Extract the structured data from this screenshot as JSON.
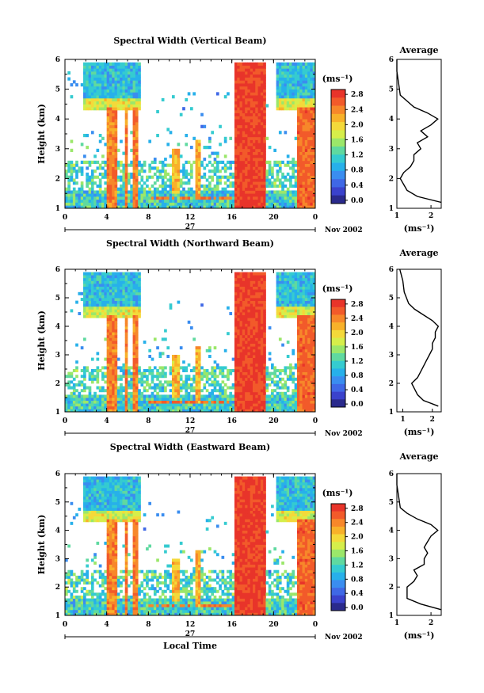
{
  "colorbar": {
    "unit": "(ms⁻¹)",
    "ticks": [
      "2.8",
      "2.4",
      "2.0",
      "1.6",
      "1.2",
      "0.8",
      "0.4",
      "0.0"
    ],
    "colors": [
      "#e8342a",
      "#f25a2a",
      "#f7872a",
      "#f8b12a",
      "#f4d93a",
      "#d6ee4a",
      "#9be76a",
      "#5fd9a0",
      "#35cbd0",
      "#27b0ea",
      "#3a8df0",
      "#3f68e6",
      "#3a42cc",
      "#2a2a8c"
    ]
  },
  "chart_data": [
    {
      "type": "heatmap",
      "title": "Spectral Width (Vertical Beam)",
      "ylabel": "Height (km)",
      "ylim": [
        1,
        6
      ],
      "yticks": [
        "1",
        "2",
        "3",
        "4",
        "5",
        "6"
      ],
      "xticks": [
        "0",
        "4",
        "8",
        "12",
        "16",
        "20",
        "0"
      ],
      "day_label": "27",
      "date_label": "Nov 2002",
      "average": {
        "title": "Average",
        "xlabel": "(ms⁻¹)",
        "xticks": [
          "1",
          "2"
        ],
        "xlim": [
          1,
          2.3
        ],
        "yticks": [
          "1",
          "2",
          "3",
          "4",
          "5",
          "6"
        ],
        "profile": [
          [
            2.3,
            1.2
          ],
          [
            1.6,
            1.4
          ],
          [
            1.3,
            1.6
          ],
          [
            1.2,
            1.8
          ],
          [
            1.1,
            2.0
          ],
          [
            1.2,
            2.2
          ],
          [
            1.4,
            2.4
          ],
          [
            1.5,
            2.6
          ],
          [
            1.5,
            2.8
          ],
          [
            1.7,
            3.0
          ],
          [
            1.6,
            3.2
          ],
          [
            1.9,
            3.4
          ],
          [
            1.7,
            3.6
          ],
          [
            2.0,
            3.8
          ],
          [
            2.2,
            4.0
          ],
          [
            1.9,
            4.2
          ],
          [
            1.5,
            4.4
          ],
          [
            1.3,
            4.6
          ],
          [
            1.1,
            4.8
          ],
          [
            1.05,
            5.2
          ],
          [
            1.0,
            5.6
          ],
          [
            1.0,
            6.0
          ]
        ]
      }
    },
    {
      "type": "heatmap",
      "title": "Spectral Width (Northward Beam)",
      "ylabel": "Height (km)",
      "ylim": [
        1,
        6
      ],
      "yticks": [
        "1",
        "2",
        "3",
        "4",
        "5",
        "6"
      ],
      "xticks": [
        "0",
        "4",
        "8",
        "12",
        "16",
        "20",
        "0"
      ],
      "day_label": "27",
      "date_label": "Nov 2002",
      "average": {
        "title": "Average",
        "xlabel": "(ms⁻¹)",
        "xticks": [
          "1",
          "2"
        ],
        "xlim": [
          0.8,
          2.3
        ],
        "yticks": [
          "1",
          "2",
          "3",
          "4",
          "5",
          "6"
        ],
        "profile": [
          [
            2.2,
            1.2
          ],
          [
            1.7,
            1.4
          ],
          [
            1.5,
            1.6
          ],
          [
            1.4,
            1.8
          ],
          [
            1.3,
            2.0
          ],
          [
            1.5,
            2.2
          ],
          [
            1.6,
            2.4
          ],
          [
            1.7,
            2.6
          ],
          [
            1.8,
            2.8
          ],
          [
            1.9,
            3.0
          ],
          [
            2.0,
            3.2
          ],
          [
            2.0,
            3.4
          ],
          [
            2.1,
            3.6
          ],
          [
            2.1,
            3.8
          ],
          [
            2.2,
            4.0
          ],
          [
            2.0,
            4.2
          ],
          [
            1.7,
            4.4
          ],
          [
            1.4,
            4.6
          ],
          [
            1.2,
            4.8
          ],
          [
            1.05,
            5.2
          ],
          [
            1.0,
            5.6
          ],
          [
            0.9,
            6.0
          ]
        ]
      }
    },
    {
      "type": "heatmap",
      "title": "Spectral Width (Eastward Beam)",
      "ylabel": "Height (km)",
      "xlabel": "Local Time",
      "ylim": [
        1,
        6
      ],
      "yticks": [
        "1",
        "2",
        "3",
        "4",
        "5",
        "6"
      ],
      "xticks": [
        "0",
        "4",
        "8",
        "12",
        "16",
        "20",
        "0"
      ],
      "day_label": "27",
      "date_label": "Nov 2002",
      "average": {
        "title": "Average",
        "xlabel": "(ms⁻¹)",
        "xticks": [
          "1",
          "2"
        ],
        "xlim": [
          1,
          2.3
        ],
        "yticks": [
          "1",
          "2",
          "3",
          "4",
          "5",
          "6"
        ],
        "profile": [
          [
            2.3,
            1.2
          ],
          [
            1.7,
            1.4
          ],
          [
            1.3,
            1.6
          ],
          [
            1.3,
            1.8
          ],
          [
            1.3,
            2.0
          ],
          [
            1.5,
            2.2
          ],
          [
            1.6,
            2.4
          ],
          [
            1.5,
            2.6
          ],
          [
            1.8,
            2.8
          ],
          [
            1.8,
            3.0
          ],
          [
            1.9,
            3.2
          ],
          [
            1.8,
            3.4
          ],
          [
            1.9,
            3.6
          ],
          [
            2.0,
            3.8
          ],
          [
            2.2,
            4.0
          ],
          [
            2.0,
            4.2
          ],
          [
            1.6,
            4.4
          ],
          [
            1.3,
            4.6
          ],
          [
            1.1,
            4.8
          ],
          [
            1.05,
            5.2
          ],
          [
            1.0,
            5.6
          ],
          [
            1.0,
            6.0
          ]
        ]
      }
    }
  ]
}
